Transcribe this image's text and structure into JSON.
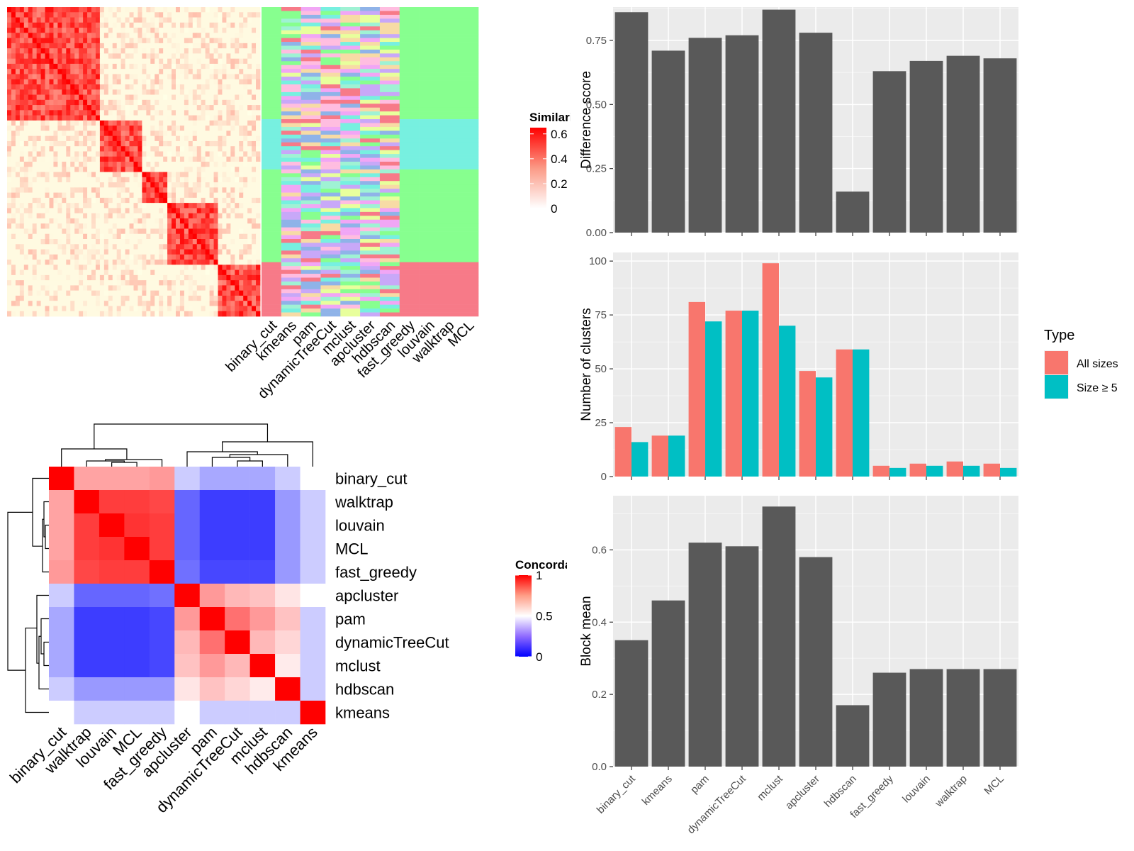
{
  "colors": {
    "panel_bg": "#ebebeb",
    "grid": "#ffffff",
    "bar": "#595959",
    "all_sizes": "#f8766d",
    "size_ge5": "#00bfc4",
    "heat_high": "#ff0000",
    "heat_mid": "#ffffff",
    "heat_low": "#0000ff",
    "cluster_palette": [
      "#87ff8f",
      "#77f0e0",
      "#f77a88",
      "#8fb3e8",
      "#f1a6f5",
      "#f7dba5",
      "#c8a8f8",
      "#e8ff9c",
      "#9ff2d4",
      "#ffbde0"
    ]
  },
  "similarity_heatmap": {
    "legend_title": "Similarity",
    "legend_ticks": [
      "0.6",
      "0.4",
      "0.2",
      "0"
    ],
    "blocks": [
      "binary_cut block 1",
      "block 2",
      "block 3",
      "block 4",
      "block 5"
    ],
    "cluster_columns": [
      "binary_cut",
      "kmeans",
      "pam",
      "dynamicTreeCut",
      "mclust",
      "apcluster",
      "hdbscan",
      "fast_greedy",
      "louvain",
      "walktrap",
      "MCL"
    ]
  },
  "concordance_heatmap": {
    "legend_title": "Concordance",
    "legend_ticks": [
      "1",
      "0.5",
      "0"
    ],
    "methods": [
      "binary_cut",
      "walktrap",
      "louvain",
      "MCL",
      "fast_greedy",
      "apcluster",
      "pam",
      "dynamicTreeCut",
      "mclust",
      "hdbscan",
      "kmeans"
    ],
    "matrix": [
      [
        1.0,
        0.68,
        0.68,
        0.68,
        0.7,
        0.4,
        0.33,
        0.33,
        0.33,
        0.4,
        0.5
      ],
      [
        0.68,
        1.0,
        0.88,
        0.88,
        0.86,
        0.2,
        0.12,
        0.12,
        0.12,
        0.3,
        0.4
      ],
      [
        0.68,
        0.88,
        1.0,
        0.9,
        0.88,
        0.2,
        0.12,
        0.12,
        0.12,
        0.3,
        0.4
      ],
      [
        0.68,
        0.88,
        0.9,
        1.0,
        0.88,
        0.2,
        0.12,
        0.12,
        0.12,
        0.3,
        0.4
      ],
      [
        0.7,
        0.86,
        0.88,
        0.88,
        1.0,
        0.22,
        0.14,
        0.14,
        0.14,
        0.3,
        0.4
      ],
      [
        0.4,
        0.2,
        0.2,
        0.2,
        0.22,
        1.0,
        0.7,
        0.64,
        0.62,
        0.55,
        0.5
      ],
      [
        0.33,
        0.12,
        0.12,
        0.12,
        0.14,
        0.7,
        1.0,
        0.78,
        0.7,
        0.62,
        0.4
      ],
      [
        0.33,
        0.12,
        0.12,
        0.12,
        0.14,
        0.64,
        0.78,
        1.0,
        0.64,
        0.58,
        0.4
      ],
      [
        0.33,
        0.12,
        0.12,
        0.12,
        0.14,
        0.62,
        0.7,
        0.64,
        1.0,
        0.54,
        0.4
      ],
      [
        0.4,
        0.3,
        0.3,
        0.3,
        0.3,
        0.55,
        0.62,
        0.58,
        0.54,
        1.0,
        0.4
      ],
      [
        0.5,
        0.4,
        0.4,
        0.4,
        0.4,
        0.5,
        0.4,
        0.4,
        0.4,
        0.4,
        1.0
      ]
    ]
  },
  "chart_data": [
    {
      "type": "bar",
      "categories": [
        "binary_cut",
        "kmeans",
        "pam",
        "dynamicTreeCut",
        "mclust",
        "apcluster",
        "hdbscan",
        "fast_greedy",
        "louvain",
        "walktrap",
        "MCL"
      ],
      "values": [
        0.86,
        0.71,
        0.76,
        0.77,
        0.87,
        0.78,
        0.16,
        0.63,
        0.67,
        0.69,
        0.68
      ],
      "ylabel": "Difference score",
      "ylim": [
        0,
        0.88
      ],
      "yticks": [
        0,
        0.25,
        0.5,
        0.75
      ],
      "ytick_labels": [
        "0.00",
        "0.25",
        "0.50",
        "0.75"
      ],
      "grid": true
    },
    {
      "type": "bar",
      "categories": [
        "binary_cut",
        "kmeans",
        "pam",
        "dynamicTreeCut",
        "mclust",
        "apcluster",
        "hdbscan",
        "fast_greedy",
        "louvain",
        "walktrap",
        "MCL"
      ],
      "series": [
        {
          "name": "All sizes",
          "values": [
            23,
            19,
            81,
            77,
            99,
            49,
            59,
            5,
            6,
            7,
            6
          ]
        },
        {
          "name": "Size ≥ 5",
          "values": [
            16,
            19,
            72,
            77,
            70,
            46,
            59,
            4,
            5,
            5,
            4
          ]
        }
      ],
      "ylabel": "Number of clusters",
      "ylim": [
        0,
        104
      ],
      "yticks": [
        0,
        25,
        50,
        75,
        100
      ],
      "ytick_labels": [
        "0",
        "25",
        "50",
        "75",
        "100"
      ],
      "legend_title": "Type",
      "legend_position": "right",
      "grid": true
    },
    {
      "type": "bar",
      "categories": [
        "binary_cut",
        "kmeans",
        "pam",
        "dynamicTreeCut",
        "mclust",
        "apcluster",
        "hdbscan",
        "fast_greedy",
        "louvain",
        "walktrap",
        "MCL"
      ],
      "values": [
        0.35,
        0.46,
        0.62,
        0.61,
        0.72,
        0.58,
        0.17,
        0.26,
        0.27,
        0.27,
        0.27
      ],
      "ylabel": "Block mean",
      "ylim": [
        0,
        0.75
      ],
      "yticks": [
        0,
        0.2,
        0.4,
        0.6
      ],
      "ytick_labels": [
        "0.0",
        "0.2",
        "0.4",
        "0.6"
      ],
      "grid": true
    }
  ]
}
